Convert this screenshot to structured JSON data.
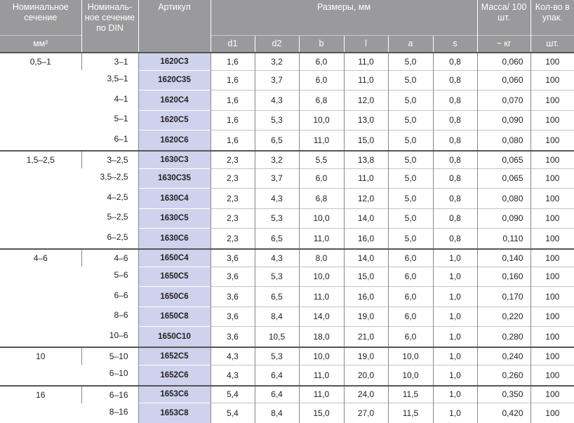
{
  "header": {
    "nominal_section": "Номинальное сечение",
    "nominal_section_unit": "мм²",
    "nominal_din": "Номиналь-ное сечение по DIN",
    "article": "Артикул",
    "dimensions": "Размеры, мм",
    "dim_cols": [
      "d1",
      "d2",
      "b",
      "l",
      "a",
      "s"
    ],
    "mass": "Масса/ 100 шт.",
    "mass_unit": "~ кг",
    "qty": "Кол-во в упак.",
    "qty_unit": "шт."
  },
  "groups": [
    {
      "section": "0,5–1",
      "rows": [
        [
          "3–1",
          "1620C3",
          "1,6",
          "3,2",
          "6,0",
          "11,0",
          "5,0",
          "0,8",
          "0,060",
          "100"
        ],
        [
          "3,5–1",
          "1620C35",
          "1,6",
          "3,7",
          "6,0",
          "11,0",
          "5,0",
          "0,8",
          "0,060",
          "100"
        ],
        [
          "4–1",
          "1620C4",
          "1,6",
          "4,3",
          "6,8",
          "12,0",
          "5,0",
          "0,8",
          "0,070",
          "100"
        ],
        [
          "5–1",
          "1620C5",
          "1,6",
          "5,3",
          "10,0",
          "13,0",
          "5,0",
          "0,8",
          "0,090",
          "100"
        ],
        [
          "6–1",
          "1620C6",
          "1,6",
          "6,5",
          "11,0",
          "15,0",
          "5,0",
          "0,8",
          "0,080",
          "100"
        ]
      ]
    },
    {
      "section": "1,5–2,5",
      "rows": [
        [
          "3–2,5",
          "1630C3",
          "2,3",
          "3,2",
          "5,5",
          "13,8",
          "5,0",
          "0,8",
          "0,065",
          "100"
        ],
        [
          "3,5–2,5",
          "1630C35",
          "2,3",
          "3,7",
          "6,0",
          "11,0",
          "5,0",
          "0,8",
          "0,065",
          "100"
        ],
        [
          "4–2,5",
          "1630C4",
          "2,3",
          "4,3",
          "6,8",
          "12,0",
          "5,0",
          "0,8",
          "0,080",
          "100"
        ],
        [
          "5–2,5",
          "1630C5",
          "2,3",
          "5,3",
          "10,0",
          "14,0",
          "5,0",
          "0,8",
          "0,090",
          "100"
        ],
        [
          "6–2,5",
          "1630C6",
          "2,3",
          "6,5",
          "11,0",
          "16,0",
          "5,0",
          "0,8",
          "0,110",
          "100"
        ]
      ]
    },
    {
      "section": "4–6",
      "rows": [
        [
          "4–6",
          "1650C4",
          "3,6",
          "4,3",
          "8,0",
          "14,0",
          "6,0",
          "1,0",
          "0,140",
          "100"
        ],
        [
          "5–6",
          "1650C5",
          "3,6",
          "5,3",
          "10,0",
          "15,0",
          "6,0",
          "1,0",
          "0,160",
          "100"
        ],
        [
          "6–6",
          "1650C6",
          "3,6",
          "6,5",
          "11,0",
          "16,0",
          "6,0",
          "1,0",
          "0,170",
          "100"
        ],
        [
          "8–6",
          "1650C8",
          "3,6",
          "8,4",
          "14,0",
          "19,0",
          "6,0",
          "1,0",
          "0,220",
          "100"
        ],
        [
          "10–6",
          "1650C10",
          "3,6",
          "10,5",
          "18,0",
          "21,0",
          "6,0",
          "1,0",
          "0,280",
          "100"
        ]
      ]
    },
    {
      "section": "10",
      "rows": [
        [
          "5–10",
          "1652C5",
          "4,3",
          "5,3",
          "10,0",
          "19,0",
          "10,0",
          "1,0",
          "0,240",
          "100"
        ],
        [
          "6–10",
          "1652C6",
          "4,3",
          "6,4",
          "11,0",
          "20,0",
          "10,0",
          "1,0",
          "0,260",
          "100"
        ]
      ]
    },
    {
      "section": "16",
      "rows": [
        [
          "6–16",
          "1653C6",
          "5,4",
          "6,4",
          "11,0",
          "24,0",
          "11,5",
          "1,0",
          "0,350",
          "100"
        ],
        [
          "8–16",
          "1653C8",
          "5,4",
          "8,4",
          "15,0",
          "27,0",
          "11,5",
          "1,0",
          "0,420",
          "100"
        ]
      ]
    }
  ]
}
